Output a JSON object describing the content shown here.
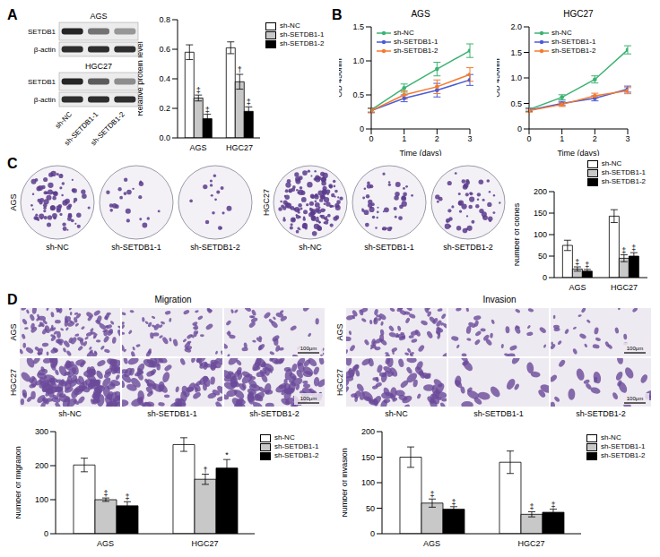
{
  "chart_data": [
    {
      "type": "bar",
      "y_label": "Relative protein level",
      "categories": [
        "AGS",
        "HGC27"
      ],
      "series": [
        {
          "name": "sh-NC",
          "color": "#ffffff",
          "values": [
            0.58,
            0.61
          ],
          "errors": [
            0.05,
            0.04
          ]
        },
        {
          "name": "sh-SETDB1-1",
          "color": "#c8c8c8",
          "values": [
            0.27,
            0.38
          ],
          "errors": [
            0.02,
            0.05
          ],
          "significance": [
            "‡",
            "†"
          ]
        },
        {
          "name": "sh-SETDB1-2",
          "color": "#000000",
          "values": [
            0.13,
            0.18
          ],
          "errors": [
            0.03,
            0.03
          ],
          "significance": [
            "‡",
            "‡"
          ]
        }
      ],
      "ylim": [
        0,
        0.8
      ],
      "yticks": [
        {
          "value": 0,
          "label": "0.0"
        },
        0.2,
        0.4,
        0.6,
        0.8
      ],
      "grid": false,
      "legend": "right"
    },
    {
      "type": "line",
      "title": "AGS",
      "x_label": "Time (days)",
      "y_label": "OD 450nm",
      "x": [
        0,
        1,
        2,
        3
      ],
      "xlim": [
        0,
        3
      ],
      "xticks": [
        0,
        1,
        2,
        3
      ],
      "ylim": [
        0,
        1.5
      ],
      "yticks": [
        0,
        0.5,
        {
          "value": 1,
          "label": "1.0"
        },
        1.5
      ],
      "marker": "circle",
      "grid": false,
      "legend": "upper left",
      "series": [
        {
          "name": "sh-NC",
          "color": "#3cb371",
          "values": [
            0.28,
            0.6,
            0.88,
            1.15
          ],
          "errors": [
            0.03,
            0.06,
            0.1,
            0.1
          ]
        },
        {
          "name": "sh-SETDB1-1",
          "color": "#4b5bd6",
          "values": [
            0.27,
            0.45,
            0.57,
            0.72
          ],
          "errors": [
            0.03,
            0.05,
            0.1,
            0.08
          ]
        },
        {
          "name": "sh-SETDB1-2",
          "color": "#f47a2c",
          "values": [
            0.27,
            0.5,
            0.62,
            0.8
          ],
          "errors": [
            0.03,
            0.06,
            0.1,
            0.1
          ]
        }
      ],
      "comparisons": [
        {
          "series": [
            "sh-NC",
            "sh-SETDB1-2"
          ],
          "label": "*"
        },
        {
          "series": [
            "sh-NC",
            "sh-SETDB1-1"
          ],
          "label": "†"
        }
      ]
    },
    {
      "type": "line",
      "title": "HGC27",
      "x_label": "Time (days)",
      "y_label": "OD 450nm",
      "x": [
        0,
        1,
        2,
        3
      ],
      "xlim": [
        0,
        3
      ],
      "xticks": [
        0,
        1,
        2,
        3
      ],
      "ylim": [
        0,
        2
      ],
      "yticks": [
        0,
        0.5,
        {
          "value": 1,
          "label": "1.0"
        },
        1.5,
        {
          "value": 2,
          "label": "2.0"
        }
      ],
      "marker": "circle",
      "grid": false,
      "legend": "upper left",
      "series": [
        {
          "name": "sh-NC",
          "color": "#3cb371",
          "values": [
            0.38,
            0.62,
            0.97,
            1.55
          ],
          "errors": [
            0.03,
            0.05,
            0.07,
            0.08
          ]
        },
        {
          "name": "sh-SETDB1-1",
          "color": "#4b5bd6",
          "values": [
            0.37,
            0.5,
            0.6,
            0.78
          ],
          "errors": [
            0.03,
            0.04,
            0.05,
            0.06
          ]
        },
        {
          "name": "sh-SETDB1-2",
          "color": "#f47a2c",
          "values": [
            0.36,
            0.48,
            0.65,
            0.75
          ],
          "errors": [
            0.03,
            0.04,
            0.05,
            0.06
          ]
        }
      ],
      "comparisons": [
        {
          "series": [
            "sh-NC",
            "sh-SETDB1-2"
          ],
          "label": "‡"
        },
        {
          "series": [
            "sh-NC",
            "sh-SETDB1-1"
          ],
          "label": "‡"
        }
      ]
    },
    {
      "type": "bar",
      "y_label": "Number of clones",
      "categories": [
        "AGS",
        "HGC27"
      ],
      "series": [
        {
          "name": "sh-NC",
          "color": "#ffffff",
          "values": [
            75,
            143
          ],
          "errors": [
            12,
            15
          ]
        },
        {
          "name": "sh-SETDB1-1",
          "color": "#c8c8c8",
          "values": [
            20,
            45
          ],
          "errors": [
            5,
            8
          ],
          "significance": [
            "‡",
            "‡"
          ]
        },
        {
          "name": "sh-SETDB1-2",
          "color": "#000000",
          "values": [
            15,
            50
          ],
          "errors": [
            4,
            8
          ],
          "significance": [
            "‡",
            "‡"
          ]
        }
      ],
      "ylim": [
        0,
        200
      ],
      "yticks": [
        0,
        50,
        100,
        150,
        200
      ],
      "grid": false,
      "legend": "top"
    },
    {
      "type": "bar",
      "y_label": "Number of migration",
      "categories": [
        "AGS",
        "HGC27"
      ],
      "series": [
        {
          "name": "sh-NC",
          "color": "#ffffff",
          "values": [
            202,
            262
          ],
          "errors": [
            20,
            20
          ]
        },
        {
          "name": "sh-SETDB1-1",
          "color": "#c8c8c8",
          "values": [
            100,
            160
          ],
          "errors": [
            5,
            15
          ],
          "significance": [
            "‡",
            "†"
          ]
        },
        {
          "name": "sh-SETDB1-2",
          "color": "#000000",
          "values": [
            82,
            193
          ],
          "errors": [
            12,
            25
          ],
          "significance": [
            "‡",
            "*"
          ]
        }
      ],
      "ylim": [
        0,
        300
      ],
      "yticks": [
        0,
        100,
        200,
        300
      ],
      "grid": false,
      "legend": "right"
    },
    {
      "type": "bar",
      "y_label": "Number of invasion",
      "categories": [
        "AGS",
        "HGC27"
      ],
      "series": [
        {
          "name": "sh-NC",
          "color": "#ffffff",
          "values": [
            150,
            140
          ],
          "errors": [
            20,
            22
          ]
        },
        {
          "name": "sh-SETDB1-1",
          "color": "#c8c8c8",
          "values": [
            60,
            38
          ],
          "errors": [
            8,
            5
          ],
          "significance": [
            "‡",
            "‡"
          ]
        },
        {
          "name": "sh-SETDB1-2",
          "color": "#000000",
          "values": [
            48,
            42
          ],
          "errors": [
            5,
            6
          ],
          "significance": [
            "‡",
            "‡"
          ]
        }
      ],
      "ylim": [
        0,
        200
      ],
      "yticks": [
        0,
        50,
        100,
        150,
        200
      ],
      "grid": false,
      "legend": "right"
    }
  ],
  "figure": {
    "panel_labels": [
      "A",
      "B",
      "C",
      "D"
    ],
    "blot": {
      "cell_lines": [
        "AGS",
        "HGC27"
      ],
      "proteins": [
        "SETDB1",
        "β-actin"
      ],
      "lanes": [
        "sh-NC",
        "sh-SETDB1-1",
        "sh-SETDB1-2"
      ]
    },
    "colony_images": {
      "cell_lines": [
        "AGS",
        "HGC27"
      ],
      "labels": [
        "sh-NC",
        "sh-SETDB1-1",
        "sh-SETDB1-2"
      ]
    },
    "transwell_images": {
      "titles": [
        "Migration",
        "Invasion"
      ],
      "cell_lines": [
        "AGS",
        "HGC27"
      ],
      "labels": [
        "sh-NC",
        "sh-SETDB1-1",
        "sh-SETDB1-2"
      ],
      "scale_bar": "100μm"
    }
  }
}
